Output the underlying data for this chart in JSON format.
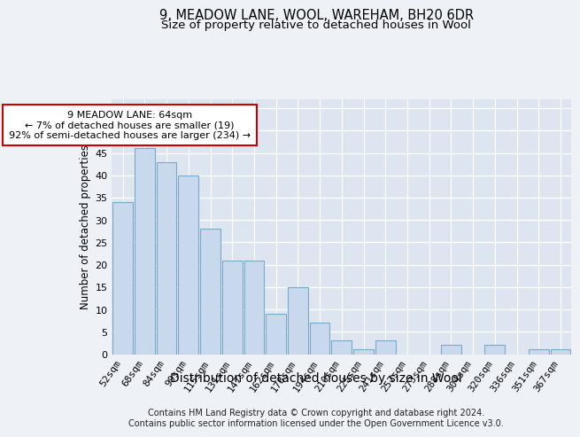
{
  "title1": "9, MEADOW LANE, WOOL, WAREHAM, BH20 6DR",
  "title2": "Size of property relative to detached houses in Wool",
  "xlabel": "Distribution of detached houses by size in Wool",
  "ylabel": "Number of detached properties",
  "categories": [
    "52sqm",
    "68sqm",
    "84sqm",
    "99sqm",
    "115sqm",
    "131sqm",
    "147sqm",
    "162sqm",
    "178sqm",
    "194sqm",
    "210sqm",
    "225sqm",
    "241sqm",
    "257sqm",
    "273sqm",
    "288sqm",
    "304sqm",
    "320sqm",
    "336sqm",
    "351sqm",
    "367sqm"
  ],
  "values": [
    34,
    46,
    43,
    40,
    28,
    21,
    21,
    9,
    15,
    7,
    3,
    1,
    3,
    0,
    0,
    2,
    0,
    2,
    0,
    1,
    1
  ],
  "bar_color": "#c8d8ed",
  "bar_edge_color": "#7aaac8",
  "annotation_text": "9 MEADOW LANE: 64sqm\n← 7% of detached houses are smaller (19)\n92% of semi-detached houses are larger (234) →",
  "annotation_box_color": "#ffffff",
  "annotation_box_edge_color": "#cc0000",
  "ylim": [
    0,
    57
  ],
  "yticks": [
    0,
    5,
    10,
    15,
    20,
    25,
    30,
    35,
    40,
    45,
    50,
    55
  ],
  "footer1": "Contains HM Land Registry data © Crown copyright and database right 2024.",
  "footer2": "Contains public sector information licensed under the Open Government Licence v3.0.",
  "bg_color": "#eef2f7",
  "plot_bg_color": "#dde6f0",
  "grid_color": "#ffffff",
  "title1_fontsize": 10.5,
  "title2_fontsize": 9.5,
  "xlabel_fontsize": 10,
  "ylabel_fontsize": 8.5,
  "tick_fontsize": 8,
  "annotation_fontsize": 8,
  "footer_fontsize": 7
}
